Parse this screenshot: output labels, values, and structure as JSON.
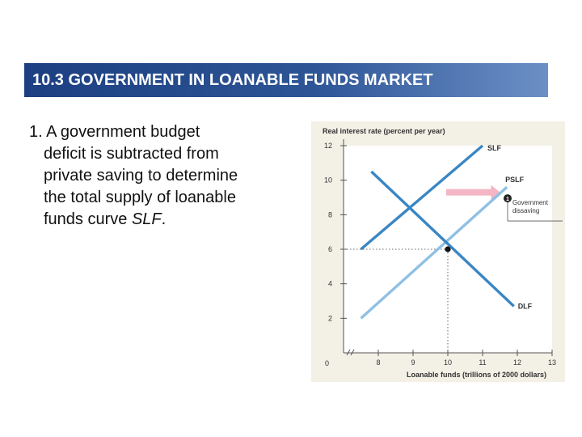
{
  "header": {
    "title": "10.3 GOVERNMENT IN LOANABLE FUNDS MARKET"
  },
  "bullet": {
    "number": "1.",
    "lines": [
      "A government budget",
      "deficit is subtracted from",
      "private saving to determine",
      "the total supply of loanable",
      "funds curve "
    ],
    "emphasis": "SLF",
    "tail": "."
  },
  "chart_data": {
    "type": "line",
    "title": "",
    "ylabel": "Real interest rate (percent per year)",
    "xlabel": "Loanable funds (trillions of 2000 dollars)",
    "xlim": [
      7,
      13
    ],
    "ylim": [
      0,
      12
    ],
    "x_ticks": [
      8,
      9,
      10,
      11,
      12,
      13
    ],
    "y_ticks": [
      2,
      4,
      6,
      8,
      10,
      12
    ],
    "origin_label": "0",
    "series": [
      {
        "name": "SLF",
        "color": "#3a86c4",
        "points": [
          [
            7.5,
            6
          ],
          [
            11,
            12
          ]
        ]
      },
      {
        "name": "PSLF",
        "color": "#8fc0e4",
        "points": [
          [
            7.5,
            2
          ],
          [
            11.7,
            9.6
          ]
        ]
      },
      {
        "name": "DLF",
        "color": "#3a86c4",
        "points": [
          [
            7.8,
            10.5
          ],
          [
            11.9,
            2.7
          ]
        ]
      }
    ],
    "equilibrium": {
      "x": 10,
      "y": 6
    },
    "arrow": {
      "from_x": 10,
      "to_x": 11.5,
      "y": 9.3,
      "color": "#f4b6c4"
    },
    "annotation": {
      "marker": "1",
      "lines": [
        "Government",
        "dissaving"
      ]
    },
    "grid": false
  }
}
